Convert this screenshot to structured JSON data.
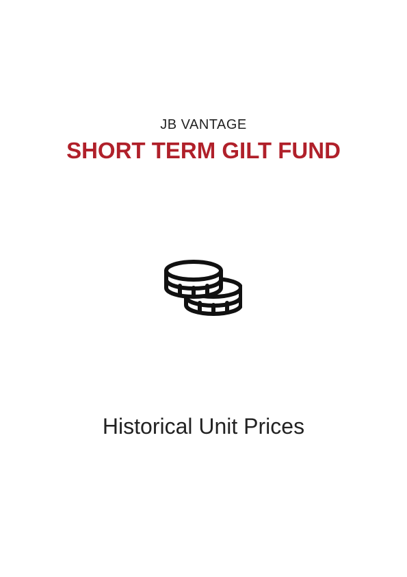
{
  "cover": {
    "brand": "JB VANTAGE",
    "fund_name": "SHORT TERM GILT FUND",
    "icon": "coins-icon",
    "subtitle": "Historical Unit Prices"
  },
  "colors": {
    "accent": "#b0202a",
    "text": "#222222",
    "icon": "#111111"
  }
}
